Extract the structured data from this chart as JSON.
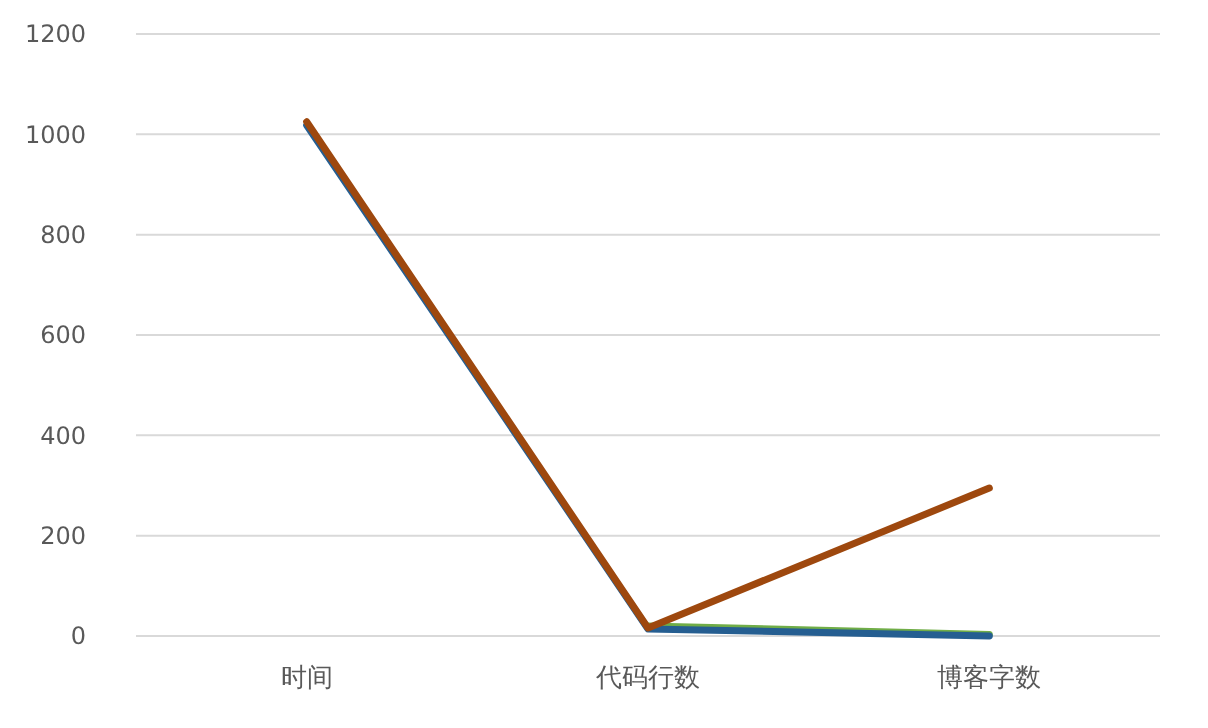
{
  "chart_data": {
    "type": "line",
    "categories": [
      "时间",
      "代码行数",
      "博客字数"
    ],
    "series": [
      {
        "color": "#70ad47",
        "values": [
          null,
          20,
          3
        ]
      },
      {
        "color": "#255e91",
        "values": [
          1018,
          14,
          0
        ]
      },
      {
        "color": "#9e480e",
        "values": [
          1025,
          16,
          295
        ]
      }
    ],
    "ylim": [
      0,
      1200
    ],
    "yticks": [
      0,
      200,
      400,
      600,
      800,
      1000,
      1200
    ],
    "grid": "y",
    "marker": "none",
    "line_style": "solid"
  }
}
